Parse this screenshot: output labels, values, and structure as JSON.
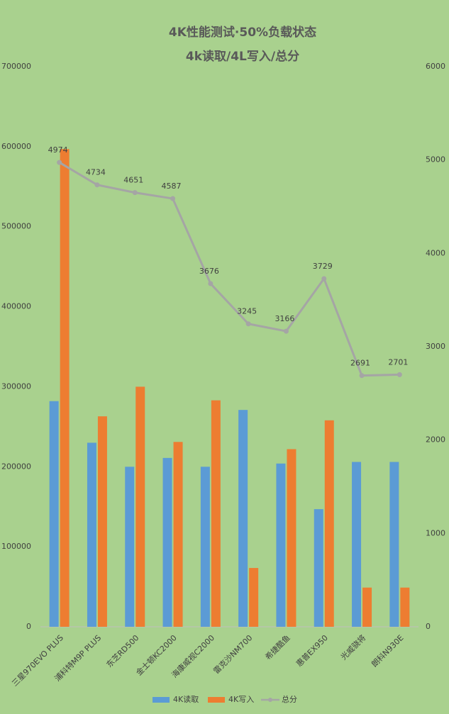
{
  "chart_data": {
    "type": "bar",
    "title": "4K性能测试·50%负载状态",
    "subtitle": "4k读取/4L写入/总分",
    "categories": [
      "三星970EVO PLUS",
      "浦科特M9P PLUS",
      "东芝RD500",
      "金士顿KC2000",
      "海康威视C2000",
      "雷克沙NM700",
      "希捷酷鱼",
      "惠普EX950",
      "光威骁将",
      "朗科N930E"
    ],
    "series": [
      {
        "name": "4K读取",
        "type": "bar",
        "color": "#5b9bd5",
        "values": [
          282000,
          230000,
          200000,
          211000,
          200000,
          271000,
          204000,
          147000,
          206000,
          206000
        ]
      },
      {
        "name": "4K写入",
        "type": "bar",
        "color": "#ed7d31",
        "values": [
          597000,
          263000,
          300000,
          231000,
          283000,
          73500,
          222000,
          258000,
          49000,
          49000
        ]
      },
      {
        "name": "总分",
        "type": "line",
        "axis": "y2",
        "color": "#a5a5a5",
        "values": [
          4974,
          4734,
          4651,
          4587,
          3676,
          3245,
          3166,
          3729,
          2691,
          2701
        ]
      }
    ],
    "ylim": [
      0,
      700000
    ],
    "yticks": [
      0,
      100000,
      200000,
      300000,
      400000,
      500000,
      600000,
      700000
    ],
    "y2lim": [
      0,
      6000
    ],
    "y2ticks": [
      0,
      1000,
      2000,
      3000,
      4000,
      5000,
      6000
    ],
    "legend": "bottom"
  }
}
